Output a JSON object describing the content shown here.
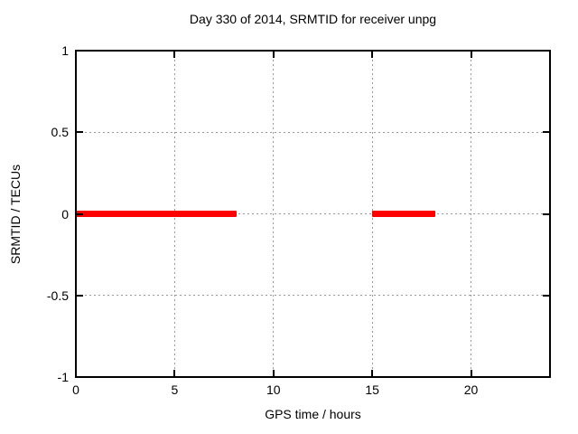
{
  "window": {
    "background": "#ffffff"
  },
  "chart_data": {
    "type": "line",
    "title": "Day 330 of 2014, SRMTID for receiver unpg",
    "xlabel": "GPS time / hours",
    "ylabel": "SRMTID / TECUs",
    "xlim": [
      0,
      24
    ],
    "ylim": [
      -1,
      1
    ],
    "x_tick_values": [
      0,
      5,
      10,
      15,
      20
    ],
    "x_tick_labels": [
      "0",
      "5",
      "10",
      "15",
      "20"
    ],
    "y_tick_values": [
      1,
      0.5,
      0,
      -0.5,
      -1
    ],
    "y_tick_labels": [
      "1",
      "0.5",
      "0",
      "-0.5",
      "-1"
    ],
    "grid": true,
    "grid_color": "#999999",
    "axis_color": "#000000",
    "legend_position": "none",
    "series": [
      {
        "name": "SRMTID",
        "color": "#ff0000",
        "line_width": 7,
        "segments": [
          {
            "x_start": 0.0,
            "x_end": 8.15,
            "y": 0
          },
          {
            "x_start": 15.0,
            "x_end": 18.2,
            "y": 0
          }
        ]
      }
    ]
  }
}
